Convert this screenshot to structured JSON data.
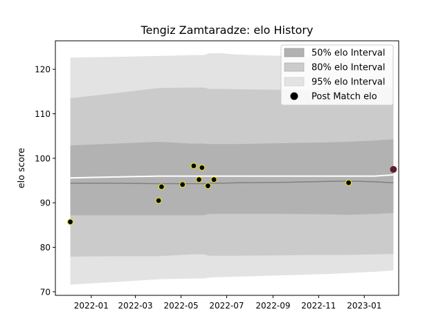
{
  "chart_data": {
    "type": "area",
    "title": "Tengiz Zamtaradze: elo History",
    "xlabel": "",
    "ylabel": "elo score",
    "xlim": [
      "2021-11-14",
      "2023-02-16"
    ],
    "ylim": [
      69.2,
      126.4
    ],
    "x_ticks": [
      {
        "date": "2022-01-01",
        "label": "2022-01"
      },
      {
        "date": "2022-03-01",
        "label": "2022-03"
      },
      {
        "date": "2022-05-01",
        "label": "2022-05"
      },
      {
        "date": "2022-07-01",
        "label": "2022-07"
      },
      {
        "date": "2022-09-01",
        "label": "2022-09"
      },
      {
        "date": "2022-11-01",
        "label": "2022-11"
      },
      {
        "date": "2023-01-01",
        "label": "2023-01"
      }
    ],
    "y_ticks": [
      70,
      80,
      90,
      100,
      110,
      120
    ],
    "grid": false,
    "legend_position": "top-right",
    "legend": {
      "band50": "50% elo Interval",
      "band80": "80% elo Interval",
      "band95": "95% elo Interval",
      "points": "Post Match elo"
    },
    "colors": {
      "band50": "#b2b2b2",
      "band80": "#cbcbcb",
      "band95": "#e3e3e3",
      "mean_line": "#ffffff",
      "median_line": "#808080",
      "point_fill": "#000000",
      "point_edge": "#e0e020",
      "last_point_fill": "#5a1f2a"
    },
    "interval_dates": [
      "2021-12-04",
      "2022-02-01",
      "2022-04-01",
      "2022-05-16",
      "2022-05-31",
      "2022-06-08",
      "2022-06-24",
      "2022-07-15",
      "2022-09-15",
      "2022-11-15",
      "2022-12-10",
      "2023-01-15",
      "2023-02-09"
    ],
    "band95_upper": [
      122.6,
      122.8,
      123.0,
      123.2,
      123.2,
      123.6,
      123.6,
      123.3,
      123.0,
      122.6,
      122.5,
      122.7,
      123.0
    ],
    "band95_lower": [
      71.6,
      72.2,
      72.8,
      73.0,
      73.0,
      73.2,
      73.3,
      73.4,
      73.7,
      74.0,
      74.2,
      74.5,
      74.8
    ],
    "band80_upper": [
      113.5,
      114.6,
      115.8,
      115.9,
      115.9,
      115.6,
      115.6,
      115.5,
      115.4,
      115.3,
      115.4,
      115.8,
      116.0
    ],
    "band80_lower": [
      77.9,
      78.0,
      78.0,
      78.4,
      78.4,
      78.1,
      78.1,
      78.1,
      78.2,
      78.3,
      78.3,
      78.4,
      78.5
    ],
    "band50_upper": [
      102.9,
      103.3,
      103.7,
      103.3,
      103.3,
      103.2,
      103.2,
      103.2,
      103.4,
      103.6,
      103.7,
      104.0,
      104.3
    ],
    "band50_lower": [
      87.2,
      87.2,
      87.2,
      87.2,
      87.2,
      87.5,
      87.5,
      87.5,
      87.5,
      87.4,
      87.3,
      87.5,
      87.7
    ],
    "mean": [
      95.6,
      95.8,
      96.0,
      96.0,
      96.0,
      96.0,
      96.0,
      96.0,
      96.0,
      96.0,
      96.0,
      96.0,
      96.3
    ],
    "median": [
      94.4,
      94.4,
      94.3,
      94.3,
      94.3,
      94.4,
      94.4,
      94.5,
      94.6,
      94.8,
      94.9,
      94.7,
      94.5
    ],
    "points": [
      {
        "date": "2021-12-04",
        "elo": 85.7
      },
      {
        "date": "2022-04-01",
        "elo": 90.5
      },
      {
        "date": "2022-04-05",
        "elo": 93.6
      },
      {
        "date": "2022-05-03",
        "elo": 94.1
      },
      {
        "date": "2022-05-18",
        "elo": 98.3
      },
      {
        "date": "2022-05-25",
        "elo": 95.2
      },
      {
        "date": "2022-05-29",
        "elo": 97.9
      },
      {
        "date": "2022-06-06",
        "elo": 93.8
      },
      {
        "date": "2022-06-14",
        "elo": 95.2
      },
      {
        "date": "2022-12-11",
        "elo": 94.5
      },
      {
        "date": "2023-02-09",
        "elo": 97.5
      }
    ]
  }
}
